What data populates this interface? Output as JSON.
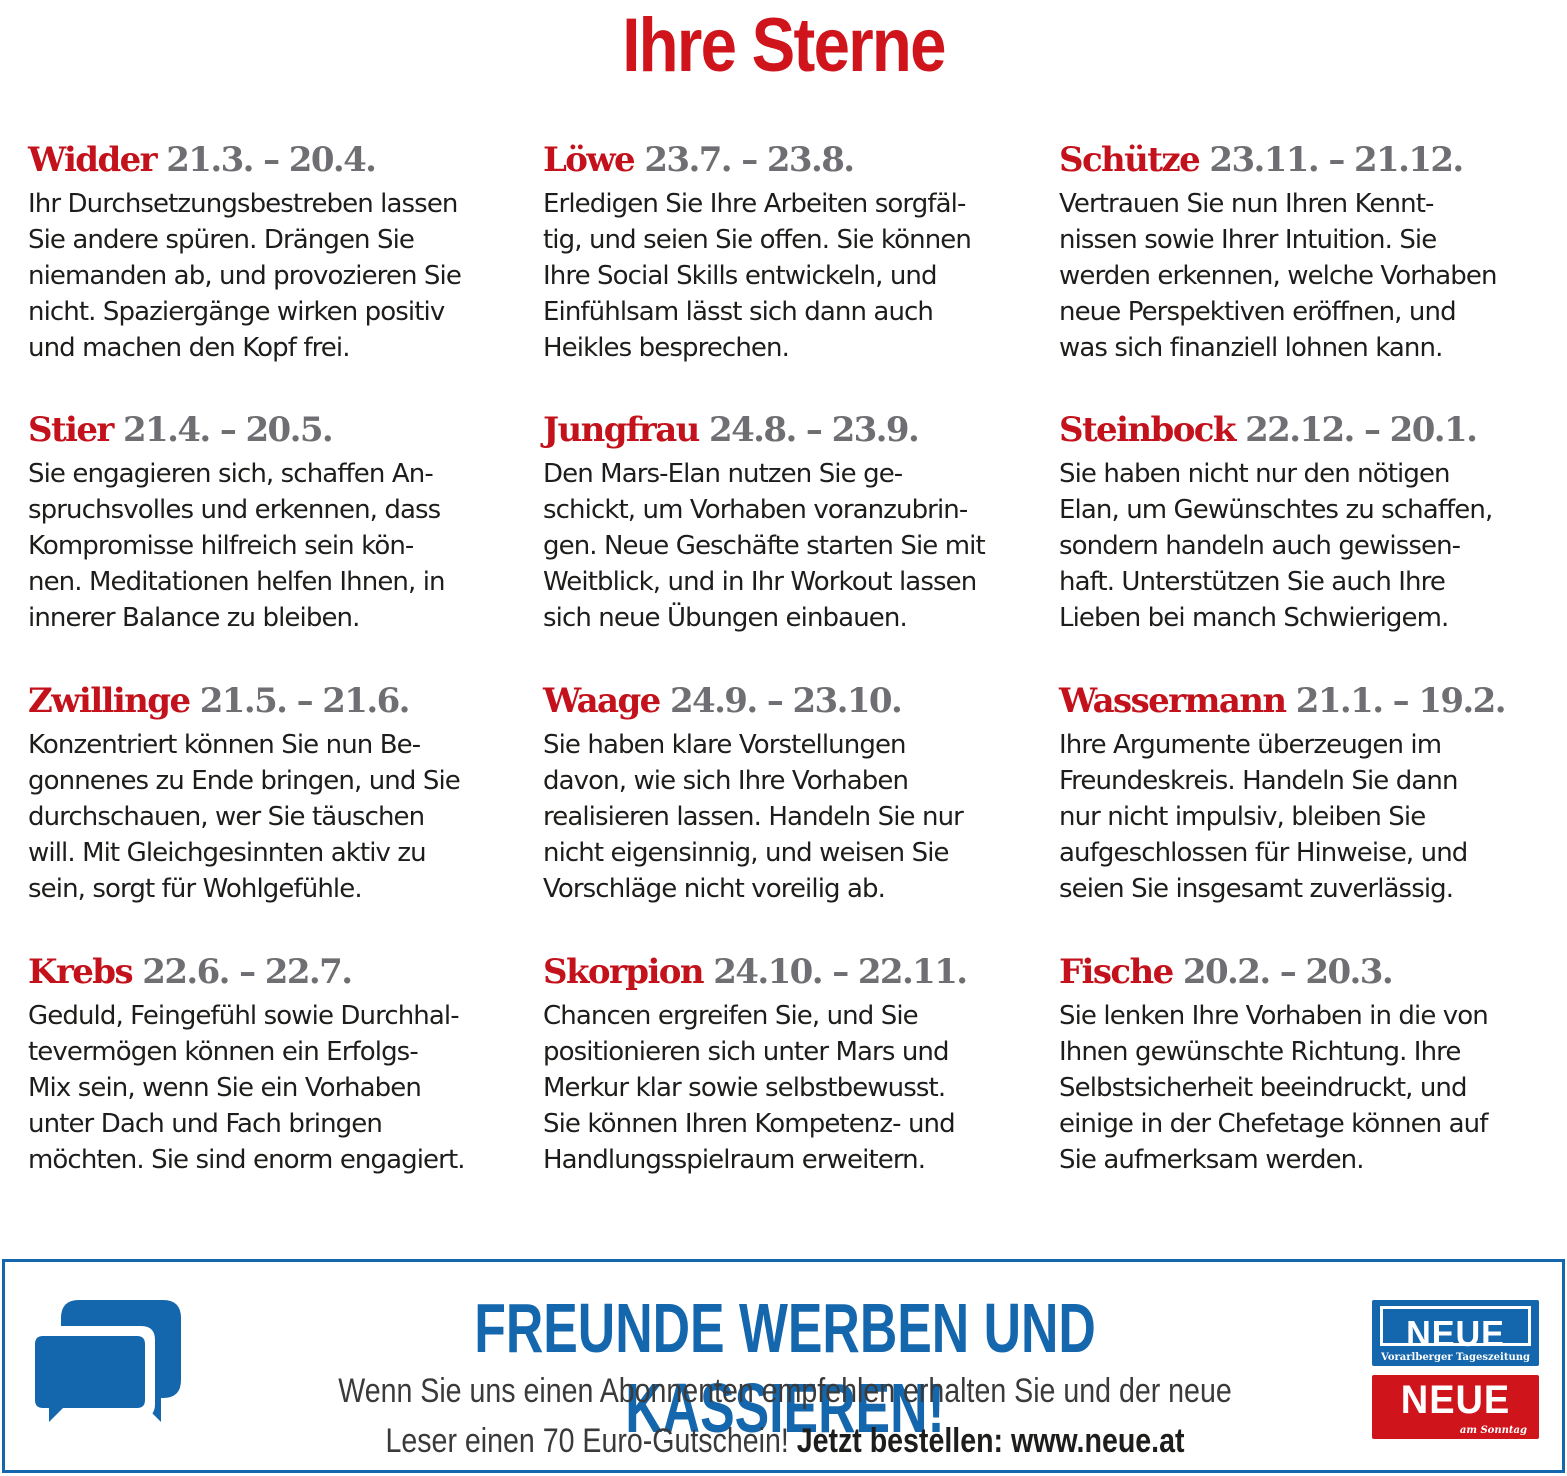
{
  "title": "Ihre Sterne",
  "horoscope": {
    "col1": [
      {
        "name": "Widder",
        "dates": "21.3. – 20.4.",
        "text": "Ihr Durchsetzungsbestreben lassen\nSie andere spüren. Drängen Sie\nniemanden ab, und provozieren Sie\nnicht. Spaziergänge wirken positiv\nund machen den Kopf frei."
      },
      {
        "name": "Stier",
        "dates": "21.4. – 20.5.",
        "text": "Sie engagieren sich, schaffen An-\nspruchsvolles und erkennen, dass\nKompromisse hilfreich sein kön-\nnen.  Meditationen helfen Ihnen, in\ninnerer Balance zu bleiben."
      },
      {
        "name": "Zwillinge",
        "dates": "21.5. – 21.6.",
        "text": "Konzentriert können Sie nun Be-\ngonnenes zu Ende bringen, und Sie\ndurchschauen, wer Sie täuschen\nwill.  Mit Gleichgesinnten aktiv zu\nsein, sorgt für Wohlgefühle."
      },
      {
        "name": "Krebs",
        "dates": "22.6. – 22.7.",
        "text": "Geduld, Feingefühl sowie Durchhal-\ntevermögen können ein Erfolgs-\nMix sein, wenn Sie ein Vorhaben\nunter Dach und Fach bringen\nmöchten. Sie sind enorm engagiert."
      }
    ],
    "col2": [
      {
        "name": "Löwe",
        "dates": "23.7. – 23.8.",
        "text": "Erledigen Sie Ihre Arbeiten sorgfäl-\ntig, und seien Sie offen. Sie können\nIhre Social Skills entwickeln, und\nEinfühlsam lässt sich dann auch\nHeikles besprechen."
      },
      {
        "name": "Jungfrau",
        "dates": "24.8. – 23.9.",
        "text": "Den Mars-Elan nutzen Sie ge-\nschickt, um Vorhaben voranzubrin-\ngen. Neue Geschäfte starten Sie mit\nWeitblick, und in Ihr Workout lassen\nsich neue Übungen einbauen."
      },
      {
        "name": "Waage",
        "dates": "24.9. – 23.10.",
        "text": "Sie haben klare Vorstellungen\ndavon, wie sich Ihre Vorhaben\nrealisieren lassen. Handeln Sie nur\nnicht eigensinnig, und weisen Sie\nVorschläge nicht voreilig ab."
      },
      {
        "name": "Skorpion",
        "dates": "24.10. – 22.11.",
        "text": "Chancen ergreifen Sie, und Sie\npositionieren sich unter Mars und\nMerkur klar sowie selbstbewusst.\nSie können Ihren Kompetenz- und\nHandlungsspielraum erweitern."
      }
    ],
    "col3": [
      {
        "name": "Schütze",
        "dates": "23.11. – 21.12.",
        "text": "Vertrauen Sie nun Ihren Kennt-\nnissen sowie Ihrer Intuition. Sie\nwerden erkennen, welche Vorhaben\nneue Perspektiven eröffnen, und\nwas sich finanziell lohnen kann."
      },
      {
        "name": "Steinbock",
        "dates": "22.12. – 20.1.",
        "text": "Sie haben nicht nur den nötigen\nElan, um Gewünschtes zu schaffen,\nsondern handeln auch gewissen-\nhaft. Unterstützen Sie auch Ihre\nLieben bei manch Schwierigem."
      },
      {
        "name": "Wassermann",
        "dates": "21.1. – 19.2.",
        "text": "Ihre Argumente überzeugen im\nFreundeskreis. Handeln Sie dann\nnur nicht impulsiv, bleiben Sie\naufgeschlossen für Hinweise, und\nseien Sie insgesamt zuverlässig."
      },
      {
        "name": "Fische",
        "dates": "20.2. – 20.3.",
        "text": "Sie lenken Ihre Vorhaben in die von\nIhnen gewünschte Richtung. Ihre\nSelbstsicherheit beeindruckt, und\neinige in der Chefetage können auf\nSie aufmerksam werden."
      }
    ]
  },
  "promo": {
    "icon": "speech-bubbles-icon",
    "title": "FREUNDE WERBEN UND KASSIEREN!",
    "line1": "Wenn Sie uns einen Abonnenten empfehlen erhalten Sie und der neue",
    "line2": "Leser einen 70 Euro-Gutschein!",
    "cta": "Jetzt bestellen: www.neue.at"
  },
  "logos": [
    {
      "word": "NEUE",
      "sub": "Vorarlberger Tageszeitung"
    },
    {
      "word": "NEUE",
      "sub": "am Sonntag"
    }
  ],
  "colors": {
    "accent_red": "#d0141b",
    "date_gray": "#6f6f73",
    "brand_blue": "#1466ad"
  }
}
